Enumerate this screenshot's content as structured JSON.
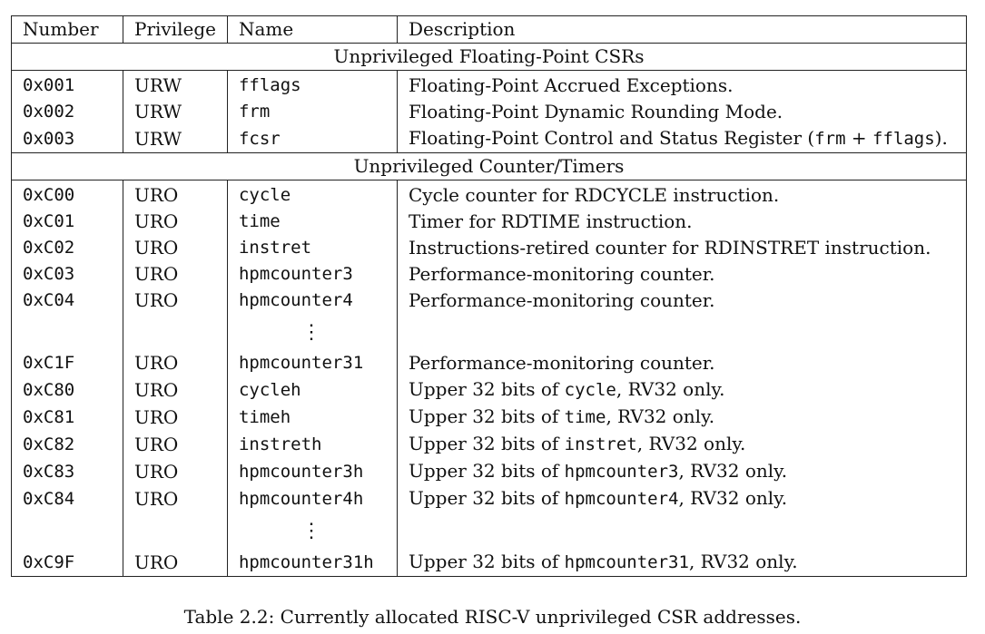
{
  "headers": [
    "Number",
    "Privilege",
    "Name",
    "Description"
  ],
  "sections": [
    {
      "title": "Unprivileged Floating-Point CSRs",
      "rows": [
        {
          "number": "0x001",
          "privilege": "URW",
          "name": "fflags",
          "description": [
            {
              "t": "Floating-Point Accrued Exceptions."
            }
          ]
        },
        {
          "number": "0x002",
          "privilege": "URW",
          "name": "frm",
          "description": [
            {
              "t": "Floating-Point Dynamic Rounding Mode."
            }
          ]
        },
        {
          "number": "0x003",
          "privilege": "URW",
          "name": "fcsr",
          "description": [
            {
              "t": "Floating-Point Control and Status Register ("
            },
            {
              "t": "frm",
              "mono": true
            },
            {
              "t": " + "
            },
            {
              "t": "fflags",
              "mono": true
            },
            {
              "t": ")."
            }
          ]
        }
      ]
    },
    {
      "title": "Unprivileged Counter/Timers",
      "rows": [
        {
          "number": "0xC00",
          "privilege": "URO",
          "name": "cycle",
          "description": [
            {
              "t": "Cycle counter for RDCYCLE instruction."
            }
          ]
        },
        {
          "number": "0xC01",
          "privilege": "URO",
          "name": "time",
          "description": [
            {
              "t": "Timer for RDTIME instruction."
            }
          ]
        },
        {
          "number": "0xC02",
          "privilege": "URO",
          "name": "instret",
          "description": [
            {
              "t": "Instructions-retired counter for RDINSTRET instruction."
            }
          ]
        },
        {
          "number": "0xC03",
          "privilege": "URO",
          "name": "hpmcounter3",
          "description": [
            {
              "t": "Performance-monitoring counter."
            }
          ]
        },
        {
          "number": "0xC04",
          "privilege": "URO",
          "name": "hpmcounter4",
          "description": [
            {
              "t": "Performance-monitoring counter."
            }
          ]
        },
        {
          "ellipsis": true
        },
        {
          "number": "0xC1F",
          "privilege": "URO",
          "name": "hpmcounter31",
          "description": [
            {
              "t": "Performance-monitoring counter."
            }
          ]
        },
        {
          "number": "0xC80",
          "privilege": "URO",
          "name": "cycleh",
          "description": [
            {
              "t": "Upper 32 bits of "
            },
            {
              "t": "cycle",
              "mono": true
            },
            {
              "t": ", RV32 only."
            }
          ]
        },
        {
          "number": "0xC81",
          "privilege": "URO",
          "name": "timeh",
          "description": [
            {
              "t": "Upper 32 bits of "
            },
            {
              "t": "time",
              "mono": true
            },
            {
              "t": ", RV32 only."
            }
          ]
        },
        {
          "number": "0xC82",
          "privilege": "URO",
          "name": "instreth",
          "description": [
            {
              "t": "Upper 32 bits of "
            },
            {
              "t": "instret",
              "mono": true
            },
            {
              "t": ", RV32 only."
            }
          ]
        },
        {
          "number": "0xC83",
          "privilege": "URO",
          "name": "hpmcounter3h",
          "description": [
            {
              "t": "Upper 32 bits of "
            },
            {
              "t": "hpmcounter3",
              "mono": true
            },
            {
              "t": ", RV32 only."
            }
          ]
        },
        {
          "number": "0xC84",
          "privilege": "URO",
          "name": "hpmcounter4h",
          "description": [
            {
              "t": "Upper 32 bits of "
            },
            {
              "t": "hpmcounter4",
              "mono": true
            },
            {
              "t": ", RV32 only."
            }
          ]
        },
        {
          "ellipsis": true
        },
        {
          "number": "0xC9F",
          "privilege": "URO",
          "name": "hpmcounter31h",
          "description": [
            {
              "t": "Upper 32 bits of "
            },
            {
              "t": "hpmcounter31",
              "mono": true
            },
            {
              "t": ", RV32 only."
            }
          ]
        }
      ]
    }
  ],
  "ellipsis_glyph": "⋮",
  "caption": "Table 2.2: Currently allocated RISC-V unprivileged CSR addresses."
}
